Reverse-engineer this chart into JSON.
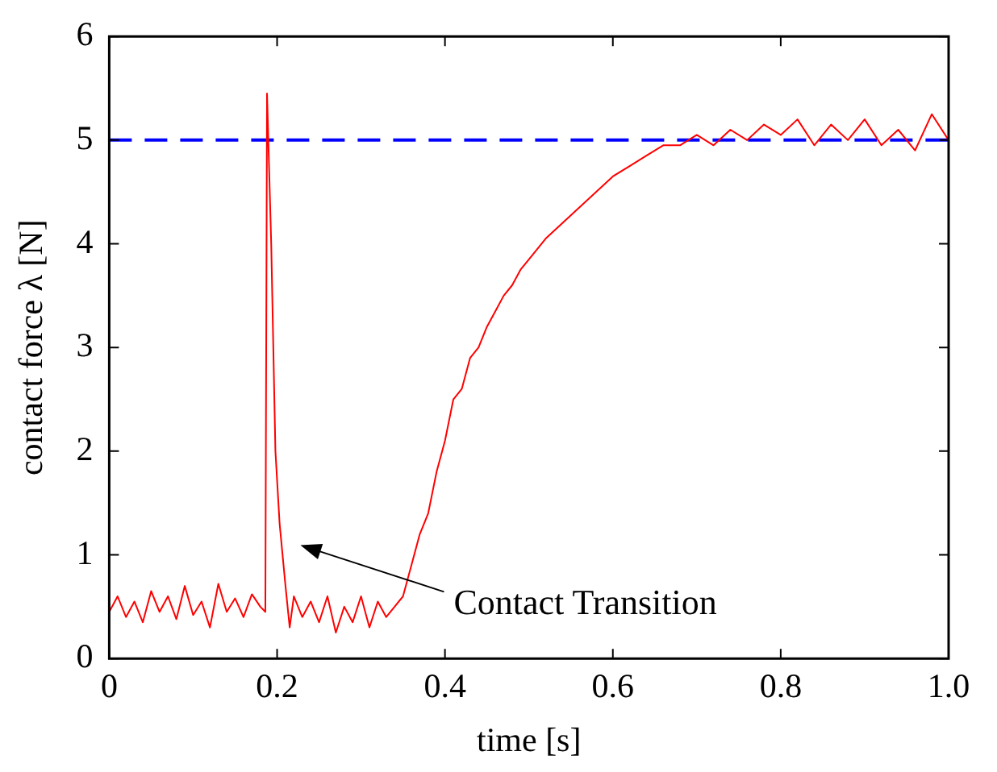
{
  "chart_data": {
    "type": "line",
    "xlabel": "time [s]",
    "ylabel": "contact force λ [N]",
    "xlim": [
      0,
      1
    ],
    "xticks": [
      0,
      0.2,
      0.4,
      0.6,
      0.8,
      {
        "value": 1,
        "label": "1.0"
      }
    ],
    "ylim": [
      0,
      6
    ],
    "yticks": [
      0,
      1,
      2,
      3,
      4,
      5,
      6
    ],
    "marker": "none",
    "line_style": "solid",
    "series": [
      {
        "color": "#ff0000",
        "x": [
          0,
          0.01,
          0.02,
          0.03,
          0.04,
          0.05,
          0.06,
          0.07,
          0.08,
          0.09,
          0.1,
          0.11,
          0.12,
          0.13,
          0.14,
          0.15,
          0.16,
          0.17,
          0.18,
          0.186,
          0.188,
          0.193,
          0.198,
          0.203,
          0.21,
          0.215,
          0.22,
          0.23,
          0.24,
          0.25,
          0.26,
          0.27,
          0.28,
          0.29,
          0.3,
          0.31,
          0.32,
          0.33,
          0.34,
          0.35,
          0.36,
          0.37,
          0.38,
          0.39,
          0.4,
          0.41,
          0.42,
          0.43,
          0.44,
          0.45,
          0.46,
          0.47,
          0.48,
          0.49,
          0.5,
          0.52,
          0.54,
          0.56,
          0.58,
          0.6,
          0.62,
          0.64,
          0.66,
          0.68,
          0.7,
          0.72,
          0.74,
          0.76,
          0.78,
          0.8,
          0.82,
          0.84,
          0.86,
          0.88,
          0.9,
          0.92,
          0.94,
          0.96,
          0.98,
          1
        ],
        "values": [
          0.45,
          0.6,
          0.4,
          0.55,
          0.35,
          0.65,
          0.45,
          0.6,
          0.38,
          0.7,
          0.42,
          0.55,
          0.3,
          0.72,
          0.45,
          0.58,
          0.4,
          0.62,
          0.5,
          0.45,
          5.45,
          4,
          2,
          1.3,
          0.7,
          0.3,
          0.6,
          0.4,
          0.55,
          0.35,
          0.6,
          0.25,
          0.5,
          0.35,
          0.6,
          0.3,
          0.55,
          0.4,
          0.5,
          0.6,
          0.9,
          1.2,
          1.4,
          1.8,
          2.1,
          2.5,
          2.6,
          2.9,
          3,
          3.2,
          3.35,
          3.5,
          3.6,
          3.75,
          3.85,
          4.05,
          4.2,
          4.35,
          4.5,
          4.65,
          4.75,
          4.85,
          4.95,
          4.95,
          5.05,
          4.95,
          5.1,
          5,
          5.15,
          5.05,
          5.2,
          4.95,
          5.15,
          5,
          5.2,
          4.95,
          5.1,
          4.9,
          5.25,
          5
        ]
      }
    ],
    "ref_lines": [
      {
        "axis": "y",
        "value": 5,
        "color": "#0000ff",
        "line_style": "dashed"
      }
    ],
    "annotations": [
      "Contact Transition"
    ]
  }
}
